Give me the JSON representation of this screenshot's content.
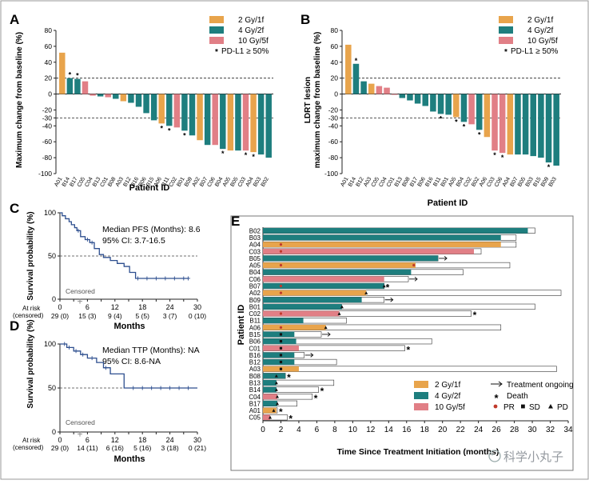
{
  "colors": {
    "c2": "#E8A44C",
    "c4": "#1E7E7E",
    "c10": "#E17F86",
    "frame": "#777777"
  },
  "watermark": "科学小丸子",
  "legendAB": {
    "items": [
      {
        "label": "2 Gy/1f",
        "group": "c2"
      },
      {
        "label": "4 Gy/2f",
        "group": "c4"
      },
      {
        "label": "10 Gy/5f",
        "group": "c10"
      }
    ],
    "star_label": "PD-L1 ≥ 50%"
  },
  "chart_data": [
    {
      "panel": "A",
      "type": "bar",
      "ylabel": "Maximum change from baseline (%)",
      "xlabel": "Patient ID",
      "ylim": [
        -100,
        80
      ],
      "yticks": [
        "80",
        "60",
        "40",
        "20",
        "0",
        "-20",
        "-30",
        "-40",
        "-60",
        "-80",
        "-100"
      ],
      "ref_lines": [
        20,
        -30
      ],
      "categories": [
        "A01",
        "B14",
        "B17",
        "C05",
        "C04",
        "B13",
        "C01",
        "B08",
        "A03",
        "B12",
        "B16",
        "B06",
        "B15",
        "A06",
        "B11",
        "C02",
        "B01",
        "B09",
        "A02",
        "B07",
        "C06",
        "B04",
        "A05",
        "B05",
        "C03",
        "A04",
        "B03",
        "B02"
      ],
      "values": [
        52,
        20,
        19,
        16,
        -2,
        -3,
        -4,
        -6,
        -9,
        -11,
        -16,
        -24,
        -33,
        -37,
        -40,
        -42,
        -46,
        -52,
        -58,
        -64,
        -64,
        -69,
        -71,
        -71,
        -71,
        -73,
        -76,
        -80
      ],
      "groups": [
        "c2",
        "c4",
        "c4",
        "c10",
        "c10",
        "c4",
        "c10",
        "c4",
        "c2",
        "c4",
        "c4",
        "c4",
        "c4",
        "c2",
        "c4",
        "c10",
        "c4",
        "c4",
        "c2",
        "c4",
        "c10",
        "c4",
        "c2",
        "c4",
        "c10",
        "c2",
        "c4",
        "c4"
      ],
      "star": [
        false,
        true,
        true,
        false,
        false,
        false,
        false,
        false,
        false,
        false,
        false,
        false,
        false,
        true,
        true,
        false,
        true,
        false,
        false,
        false,
        false,
        true,
        false,
        false,
        true,
        true,
        false,
        false
      ]
    },
    {
      "panel": "B",
      "type": "bar",
      "ylabel_line1": "LDRT lesion",
      "ylabel_line2": "maximum change from baseline (%)",
      "xlabel": "Patient ID",
      "ylim": [
        -100,
        80
      ],
      "yticks": [
        "80",
        "60",
        "40",
        "20",
        "0",
        "-20",
        "-30",
        "-40",
        "-60",
        "-80",
        "-100"
      ],
      "ref_lines": [
        20,
        -30
      ],
      "categories": [
        "A01",
        "B14",
        "B12",
        "A03",
        "C05",
        "C04",
        "C01",
        "B13",
        "B08",
        "B17",
        "B06",
        "B16",
        "B11",
        "B01",
        "A05",
        "B04",
        "C02",
        "B02",
        "A06",
        "C03",
        "C06",
        "A04",
        "B07",
        "B05",
        "B03",
        "B15",
        "B09",
        "B03"
      ],
      "values": [
        62,
        38,
        16,
        13,
        10,
        8,
        -1,
        -5,
        -8,
        -12,
        -15,
        -22,
        -25,
        -26,
        -29,
        -35,
        -38,
        -45,
        -54,
        -71,
        -74,
        -76,
        -76,
        -76,
        -78,
        -80,
        -86,
        -90
      ],
      "groups": [
        "c2",
        "c4",
        "c4",
        "c2",
        "c10",
        "c10",
        "c10",
        "c4",
        "c4",
        "c4",
        "c4",
        "c4",
        "c4",
        "c4",
        "c2",
        "c4",
        "c10",
        "c4",
        "c2",
        "c10",
        "c10",
        "c2",
        "c4",
        "c4",
        "c4",
        "c4",
        "c4",
        "c4"
      ],
      "star": [
        false,
        true,
        false,
        false,
        false,
        false,
        false,
        false,
        false,
        false,
        false,
        false,
        true,
        false,
        true,
        true,
        false,
        true,
        false,
        true,
        true,
        false,
        false,
        false,
        false,
        false,
        true,
        false
      ]
    },
    {
      "panel": "C",
      "type": "line",
      "ylabel": "Survival probability (%)",
      "xlabel": "Months",
      "xlim": [
        0,
        30
      ],
      "ylim": [
        0,
        100
      ],
      "xticks": [
        "0",
        "3",
        "6",
        "9",
        "12",
        "15",
        "18",
        "21",
        "24",
        "27",
        "30"
      ],
      "x_label_ticks": [
        {
          "v": 0,
          "t": "0"
        },
        {
          "v": 6,
          "t": "6"
        },
        {
          "v": 12,
          "t": "12"
        },
        {
          "v": 18,
          "t": "18"
        },
        {
          "v": 24,
          "t": "24"
        },
        {
          "v": 30,
          "t": "30"
        }
      ],
      "yticks": [
        "0",
        "50",
        "100"
      ],
      "median_text": "Median PFS (Months): 8.6",
      "ci_text": "95% CI: 3.7-16.5",
      "censored_label": "Censored",
      "at_risk_label": "At risk",
      "at_risk_sub": "(censored)",
      "risk_table": [
        "29 (0)",
        "15 (3)",
        "9 (4)",
        "5 (5)",
        "3 (7)",
        "0 (10)"
      ],
      "km_x": [
        0,
        0.5,
        1.2,
        2,
        2.5,
        3.2,
        3.7,
        4.5,
        5.5,
        6.5,
        7.5,
        8.6,
        9.5,
        11,
        12.5,
        14,
        15.2,
        16.5,
        28
      ],
      "km_y": [
        100,
        96.6,
        93.1,
        89.7,
        86.2,
        82.8,
        79.3,
        72.4,
        69,
        65.5,
        58.6,
        51.7,
        48.3,
        44.8,
        41.4,
        37.9,
        31,
        24.1,
        24.1
      ],
      "censor_x": [
        4,
        6,
        7,
        17,
        19,
        21,
        23,
        25,
        27,
        28
      ],
      "censor_y": [
        79.3,
        69,
        65.5,
        24.1,
        24.1,
        24.1,
        24.1,
        24.1,
        24.1,
        24.1
      ]
    },
    {
      "panel": "D",
      "type": "line",
      "ylabel": "Survival probability (%)",
      "xlabel": "Months",
      "xlim": [
        0,
        30
      ],
      "ylim": [
        0,
        100
      ],
      "xticks": [
        "0",
        "3",
        "6",
        "9",
        "12",
        "15",
        "18",
        "21",
        "24",
        "27",
        "30"
      ],
      "x_label_ticks": [
        {
          "v": 0,
          "t": "0"
        },
        {
          "v": 6,
          "t": "6"
        },
        {
          "v": 12,
          "t": "12"
        },
        {
          "v": 18,
          "t": "18"
        },
        {
          "v": 24,
          "t": "24"
        },
        {
          "v": 30,
          "t": "30"
        }
      ],
      "yticks": [
        "0",
        "50",
        "100"
      ],
      "median_text": "Median TTP (Months): NA",
      "ci_text": "95% CI: 8.6-NA",
      "censored_label": "Censored",
      "at_risk_label": "At risk",
      "at_risk_sub": "(censored)",
      "risk_table": [
        "29 (0)",
        "14 (11)",
        "6 (16)",
        "5 (16)",
        "3 (18)",
        "0 (21)"
      ],
      "km_x": [
        0,
        1.5,
        3,
        4.5,
        6,
        8,
        9.5,
        11,
        14,
        30
      ],
      "km_y": [
        100,
        96,
        92,
        88,
        84,
        79,
        73,
        66,
        50,
        50
      ],
      "censor_x": [
        1,
        2,
        3.5,
        5,
        7,
        10,
        16,
        18,
        20,
        22,
        24,
        26,
        28
      ],
      "censor_y": [
        100,
        96,
        92,
        88,
        84,
        73,
        50,
        50,
        50,
        50,
        50,
        50,
        50
      ]
    },
    {
      "panel": "E",
      "type": "bar",
      "subtype": "swimmer",
      "ylabel": "Patient ID",
      "xlabel": "Time Since Treatment Initiation (months)",
      "xlim": [
        0,
        34
      ],
      "xticks": [
        "0",
        "2",
        "4",
        "6",
        "8",
        "10",
        "12",
        "14",
        "16",
        "18",
        "20",
        "22",
        "24",
        "26",
        "28",
        "30",
        "32",
        "34"
      ],
      "categories": [
        "B02",
        "B03",
        "A04",
        "C03",
        "B05",
        "A05",
        "B04",
        "C06",
        "B07",
        "A02",
        "B09",
        "B01",
        "C02",
        "B11",
        "A06",
        "B15",
        "B06",
        "C01",
        "B16",
        "B12",
        "A03",
        "B08",
        "B13",
        "B14",
        "C04",
        "B17",
        "A01",
        "C05"
      ],
      "tx": [
        29.5,
        26.5,
        26.5,
        23.5,
        19.5,
        17,
        16.5,
        13.5,
        13.5,
        11.5,
        11,
        8.8,
        8.5,
        4.5,
        7,
        3.5,
        3.7,
        4,
        3.5,
        3.5,
        4,
        2.5,
        1.5,
        1.5,
        1.6,
        1.6,
        1.5,
        0.8
      ],
      "total": [
        30.3,
        28.2,
        28.2,
        24.3,
        19.5,
        27.5,
        22.3,
        16.2,
        13.5,
        33.2,
        13.5,
        30.3,
        23.2,
        9.3,
        26.5,
        6.5,
        18.8,
        15.8,
        4.6,
        8.2,
        32.7,
        2.5,
        7.9,
        6.2,
        5.5,
        3.8,
        1.6,
        2.7
      ],
      "groups": [
        "c4",
        "c4",
        "c2",
        "c10",
        "c4",
        "c2",
        "c4",
        "c10",
        "c4",
        "c2",
        "c4",
        "c4",
        "c10",
        "c4",
        "c2",
        "c4",
        "c4",
        "c10",
        "c4",
        "c4",
        "c2",
        "c4",
        "c4",
        "c4",
        "c10",
        "c4",
        "c2",
        "c10"
      ],
      "marker": [
        "",
        "",
        "PR",
        "PR",
        "",
        "PR",
        "",
        "",
        "PR",
        "PR",
        "",
        "",
        "PR",
        "",
        "PR",
        "SD",
        "SD",
        "SD",
        "SD",
        "SD",
        "SD",
        "PD",
        "PD",
        "PD",
        "PD",
        "PD",
        "PD",
        "PD"
      ],
      "marker_x": [
        0,
        0,
        2,
        2,
        0,
        2,
        0,
        0,
        2,
        2,
        0,
        0,
        2,
        0,
        2,
        2,
        2,
        2,
        2,
        2,
        2,
        1.5,
        1.5,
        1.5,
        1.6,
        1.6,
        1.2,
        0.8
      ],
      "mark2_type": [
        "",
        "",
        "",
        "",
        "",
        "PR",
        "",
        "",
        "PD",
        "PD",
        "",
        "PD",
        "PD",
        "",
        "PD",
        "",
        "",
        "",
        "",
        "",
        "",
        "",
        "",
        "",
        "",
        "",
        "",
        ""
      ],
      "mark2_x": [
        0,
        0,
        0,
        0,
        0,
        16.8,
        0,
        0,
        13.5,
        11.5,
        0,
        8.8,
        8.5,
        0,
        7,
        0,
        0,
        0,
        0,
        0,
        0,
        0,
        0,
        0,
        0,
        0,
        0,
        0
      ],
      "end": [
        "",
        "",
        "",
        "",
        "arrow",
        "",
        "",
        "arrow",
        "star",
        "",
        "arrow",
        "",
        "star",
        "",
        "",
        "arrow",
        "",
        "star",
        "arrow",
        "",
        "",
        "star",
        "",
        "star",
        "star",
        "",
        "star",
        "star"
      ],
      "legend": {
        "items": [
          {
            "label": "2 Gy/1f",
            "group": "c2"
          },
          {
            "label": "4 Gy/2f",
            "group": "c4"
          },
          {
            "label": "10 Gy/5f",
            "group": "c10"
          }
        ],
        "ongoing_label": "Treatment ongoing",
        "death_label": "Death",
        "pr_label": "PR",
        "sd_label": "SD",
        "pd_label": "PD"
      }
    }
  ]
}
